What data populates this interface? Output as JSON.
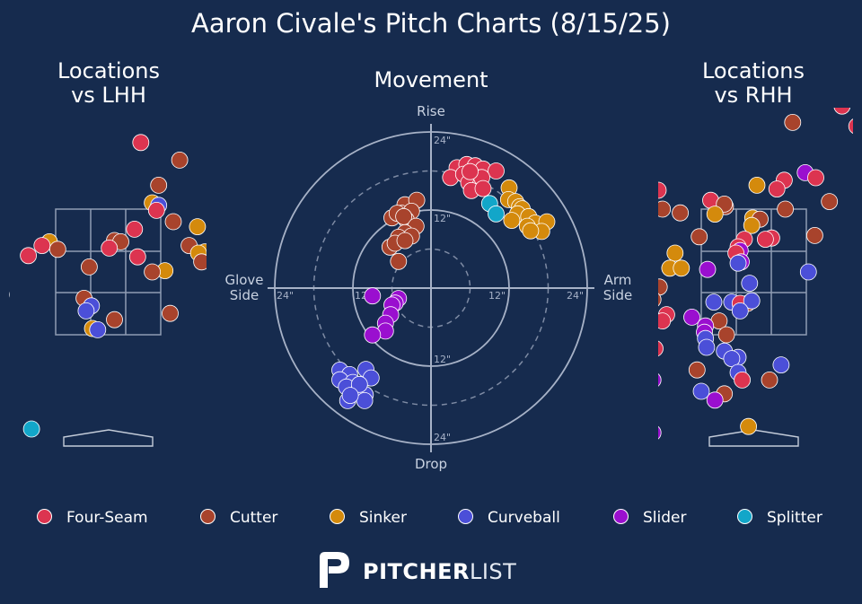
{
  "title": "Aaron Civale's Pitch Charts (8/15/25)",
  "panels": {
    "left_title": "Locations\nvs LHH",
    "center_title": "Movement",
    "right_title": "Locations\nvs RHH"
  },
  "movement_labels": {
    "rise": "Rise",
    "drop": "Drop",
    "glove": "Glove\nSide",
    "arm": "Arm\nSide"
  },
  "ring_labels": [
    "12\"",
    "24\""
  ],
  "pitch_colors": {
    "Four-Seam": "#dc3450",
    "Cutter": "#a8432c",
    "Sinker": "#d48a0c",
    "Curveball": "#4b4fd8",
    "Slider": "#9a0fcf",
    "Splitter": "#12a6c9"
  },
  "legend": [
    {
      "label": "Four-Seam",
      "color": "#dc3450"
    },
    {
      "label": "Cutter",
      "color": "#a8432c"
    },
    {
      "label": "Sinker",
      "color": "#d48a0c"
    },
    {
      "label": "Curveball",
      "color": "#4b4fd8"
    },
    {
      "label": "Slider",
      "color": "#9a0fcf"
    },
    {
      "label": "Splitter",
      "color": "#12a6c9"
    }
  ],
  "logo": {
    "bold": "PITCHER",
    "light": "LIST"
  },
  "chart_data": [
    {
      "type": "scatter",
      "title": "Locations vs LHH",
      "x_unit": "zone widths from plate center (catcher view)",
      "y_unit": "zone heights from zone bottom",
      "xlim": [
        -1.7,
        1.7
      ],
      "ylim": [
        -1.6,
        2.15
      ],
      "points": [
        {
          "p": "Four-Seam",
          "x": 0.31,
          "y": 1.53
        },
        {
          "p": "Cutter",
          "x": 0.68,
          "y": 1.39
        },
        {
          "p": "Splitter",
          "x": 1.43,
          "y": 1.39
        },
        {
          "p": "Cutter",
          "x": 0.48,
          "y": 1.19
        },
        {
          "p": "Sinker",
          "x": 0.42,
          "y": 1.05
        },
        {
          "p": "Curveball",
          "x": 0.48,
          "y": 1.03
        },
        {
          "p": "Four-Seam",
          "x": 0.46,
          "y": 0.99
        },
        {
          "p": "Cutter",
          "x": 0.62,
          "y": 0.9
        },
        {
          "p": "Sinker",
          "x": 0.85,
          "y": 0.86
        },
        {
          "p": "Four-Seam",
          "x": 0.25,
          "y": 0.84
        },
        {
          "p": "Cutter",
          "x": 1.15,
          "y": 0.82
        },
        {
          "p": "Cutter",
          "x": 0.06,
          "y": 0.75
        },
        {
          "p": "Sinker",
          "x": -0.56,
          "y": 0.74
        },
        {
          "p": "Cutter",
          "x": 0.12,
          "y": 0.74
        },
        {
          "p": "Four-Seam",
          "x": -0.63,
          "y": 0.71
        },
        {
          "p": "Cutter",
          "x": -0.48,
          "y": 0.68
        },
        {
          "p": "Four-Seam",
          "x": 0.01,
          "y": 0.69
        },
        {
          "p": "Cutter",
          "x": 0.77,
          "y": 0.71
        },
        {
          "p": "Sinker",
          "x": 0.92,
          "y": 0.66
        },
        {
          "p": "Sinker",
          "x": 0.86,
          "y": 0.65
        },
        {
          "p": "Four-Seam",
          "x": -0.76,
          "y": 0.63
        },
        {
          "p": "Four-Seam",
          "x": 0.28,
          "y": 0.62
        },
        {
          "p": "Cutter",
          "x": 0.89,
          "y": 0.58
        },
        {
          "p": "Cutter",
          "x": -0.18,
          "y": 0.54
        },
        {
          "p": "Sinker",
          "x": 0.54,
          "y": 0.51
        },
        {
          "p": "Cutter",
          "x": 0.42,
          "y": 0.5
        },
        {
          "p": "Sinker",
          "x": -1.02,
          "y": 0.32
        },
        {
          "p": "Cutter",
          "x": -0.23,
          "y": 0.29
        },
        {
          "p": "Curveball",
          "x": -0.16,
          "y": 0.23
        },
        {
          "p": "Curveball",
          "x": -0.21,
          "y": 0.19
        },
        {
          "p": "Cutter",
          "x": 0.59,
          "y": 0.17
        },
        {
          "p": "Cutter",
          "x": 0.06,
          "y": 0.12
        },
        {
          "p": "Sinker",
          "x": -0.15,
          "y": 0.05
        },
        {
          "p": "Curveball",
          "x": -0.1,
          "y": 0.04
        },
        {
          "p": "Curveball",
          "x": -1.31,
          "y": -0.48
        },
        {
          "p": "Splitter",
          "x": -0.73,
          "y": -0.75
        }
      ]
    },
    {
      "type": "scatter",
      "title": "Movement",
      "x_unit": "horizontal break (inches); negative = glove side, positive = arm side",
      "y_unit": "induced vertical break (inches); positive = rise",
      "xlim": [
        -24,
        24
      ],
      "ylim": [
        -24,
        24
      ],
      "rings_in": [
        6,
        12,
        18,
        24
      ],
      "points": [
        {
          "p": "Four-Seam",
          "x": 4.0,
          "y": 18.5
        },
        {
          "p": "Four-Seam",
          "x": 5.5,
          "y": 19.0
        },
        {
          "p": "Four-Seam",
          "x": 6.8,
          "y": 18.8
        },
        {
          "p": "Four-Seam",
          "x": 8.0,
          "y": 18.3
        },
        {
          "p": "Four-Seam",
          "x": 10.0,
          "y": 18.0
        },
        {
          "p": "Four-Seam",
          "x": 3.0,
          "y": 17.0
        },
        {
          "p": "Four-Seam",
          "x": 5.0,
          "y": 17.5
        },
        {
          "p": "Four-Seam",
          "x": 7.0,
          "y": 17.0
        },
        {
          "p": "Four-Seam",
          "x": 5.8,
          "y": 16.2
        },
        {
          "p": "Four-Seam",
          "x": 7.6,
          "y": 15.9
        },
        {
          "p": "Four-Seam",
          "x": 6.2,
          "y": 15.0
        },
        {
          "p": "Four-Seam",
          "x": 7.8,
          "y": 17.0
        },
        {
          "p": "Four-Seam",
          "x": 8.0,
          "y": 15.3
        },
        {
          "p": "Four-Seam",
          "x": 6.0,
          "y": 17.9
        },
        {
          "p": "Sinker",
          "x": 12.0,
          "y": 15.4
        },
        {
          "p": "Sinker",
          "x": 11.9,
          "y": 13.6
        },
        {
          "p": "Sinker",
          "x": 13.0,
          "y": 13.3
        },
        {
          "p": "Sinker",
          "x": 13.6,
          "y": 12.5
        },
        {
          "p": "Sinker",
          "x": 14.0,
          "y": 12.2
        },
        {
          "p": "Sinker",
          "x": 13.3,
          "y": 11.4
        },
        {
          "p": "Sinker",
          "x": 15.0,
          "y": 11.0
        },
        {
          "p": "Sinker",
          "x": 16.0,
          "y": 10.0
        },
        {
          "p": "Sinker",
          "x": 14.8,
          "y": 9.5
        },
        {
          "p": "Sinker",
          "x": 12.4,
          "y": 10.4
        },
        {
          "p": "Sinker",
          "x": 17.8,
          "y": 10.2
        },
        {
          "p": "Sinker",
          "x": 17.0,
          "y": 8.7
        },
        {
          "p": "Sinker",
          "x": 15.3,
          "y": 8.8
        },
        {
          "p": "Splitter",
          "x": 9.0,
          "y": 13.0
        },
        {
          "p": "Splitter",
          "x": 10.0,
          "y": 11.4
        },
        {
          "p": "Cutter",
          "x": -4.0,
          "y": 12.8
        },
        {
          "p": "Cutter",
          "x": -2.2,
          "y": 13.5
        },
        {
          "p": "Cutter",
          "x": -4.5,
          "y": 11.5
        },
        {
          "p": "Cutter",
          "x": -3.0,
          "y": 11.8
        },
        {
          "p": "Cutter",
          "x": -6.0,
          "y": 10.8
        },
        {
          "p": "Cutter",
          "x": -5.2,
          "y": 11.5
        },
        {
          "p": "Cutter",
          "x": -3.8,
          "y": 10.5
        },
        {
          "p": "Cutter",
          "x": -4.2,
          "y": 11.0
        },
        {
          "p": "Cutter",
          "x": -2.3,
          "y": 9.5
        },
        {
          "p": "Cutter",
          "x": -4.0,
          "y": 8.5
        },
        {
          "p": "Cutter",
          "x": -3.0,
          "y": 8.0
        },
        {
          "p": "Cutter",
          "x": -5.0,
          "y": 7.8
        },
        {
          "p": "Cutter",
          "x": -6.3,
          "y": 6.3
        },
        {
          "p": "Cutter",
          "x": -5.5,
          "y": 6.9
        },
        {
          "p": "Cutter",
          "x": -4.0,
          "y": 7.3
        },
        {
          "p": "Cutter",
          "x": -5.0,
          "y": 4.1
        },
        {
          "p": "Slider",
          "x": -9.0,
          "y": -1.2
        },
        {
          "p": "Slider",
          "x": -5.0,
          "y": -1.6
        },
        {
          "p": "Slider",
          "x": -5.5,
          "y": -2.3
        },
        {
          "p": "Slider",
          "x": -6.0,
          "y": -2.6
        },
        {
          "p": "Slider",
          "x": -6.2,
          "y": -4.1
        },
        {
          "p": "Slider",
          "x": -7.0,
          "y": -5.4
        },
        {
          "p": "Slider",
          "x": -7.0,
          "y": -6.6
        },
        {
          "p": "Slider",
          "x": -9.0,
          "y": -7.2
        },
        {
          "p": "Curveball",
          "x": -14.0,
          "y": -12.6
        },
        {
          "p": "Curveball",
          "x": -10.0,
          "y": -12.5
        },
        {
          "p": "Curveball",
          "x": -12.5,
          "y": -13.3
        },
        {
          "p": "Curveball",
          "x": -14.0,
          "y": -14.1
        },
        {
          "p": "Curveball",
          "x": -12.0,
          "y": -14.5
        },
        {
          "p": "Curveball",
          "x": -9.2,
          "y": -13.8
        },
        {
          "p": "Curveball",
          "x": -13.0,
          "y": -15.2
        },
        {
          "p": "Curveball",
          "x": -11.2,
          "y": -15.9
        },
        {
          "p": "Curveball",
          "x": -10.1,
          "y": -16.4
        },
        {
          "p": "Curveball",
          "x": -12.8,
          "y": -17.3
        },
        {
          "p": "Curveball",
          "x": -10.2,
          "y": -17.3
        },
        {
          "p": "Curveball",
          "x": -11.0,
          "y": -14.8
        },
        {
          "p": "Curveball",
          "x": -12.4,
          "y": -16.5
        }
      ]
    },
    {
      "type": "scatter",
      "title": "Locations vs RHH",
      "x_unit": "zone widths from plate center (catcher view)",
      "y_unit": "zone heights from zone bottom",
      "xlim": [
        -1.7,
        1.7
      ],
      "ylim": [
        -1.6,
        2.15
      ],
      "points": [
        {
          "p": "Cutter",
          "x": 0.37,
          "y": 1.69
        },
        {
          "p": "Sinker",
          "x": 0.03,
          "y": 1.19
        },
        {
          "p": "Four-Seam",
          "x": 0.29,
          "y": 1.23
        },
        {
          "p": "Four-Seam",
          "x": 0.22,
          "y": 1.16
        },
        {
          "p": "Four-Seam",
          "x": -0.91,
          "y": 1.15
        },
        {
          "p": "Four-Seam",
          "x": -0.41,
          "y": 1.07
        },
        {
          "p": "Cutter",
          "x": -0.27,
          "y": 1.02
        },
        {
          "p": "Cutter",
          "x": -0.28,
          "y": 1.04
        },
        {
          "p": "Cutter",
          "x": -0.87,
          "y": 1.0
        },
        {
          "p": "Cutter",
          "x": -0.7,
          "y": 0.97
        },
        {
          "p": "Sinker",
          "x": -0.37,
          "y": 0.96
        },
        {
          "p": "Cutter",
          "x": 0.3,
          "y": 1.0
        },
        {
          "p": "Sinker",
          "x": -0.01,
          "y": 0.93
        },
        {
          "p": "Cutter",
          "x": 0.06,
          "y": 0.92
        },
        {
          "p": "Sinker",
          "x": -0.02,
          "y": 0.87
        },
        {
          "p": "Cutter",
          "x": -0.52,
          "y": 0.78
        },
        {
          "p": "Four-Seam",
          "x": -0.09,
          "y": 0.76
        },
        {
          "p": "Four-Seam",
          "x": 0.17,
          "y": 0.77
        },
        {
          "p": "Four-Seam",
          "x": 0.11,
          "y": 0.76
        },
        {
          "p": "Cutter",
          "x": 0.58,
          "y": 0.79
        },
        {
          "p": "Four-Seam",
          "x": -0.15,
          "y": 0.7
        },
        {
          "p": "Slider",
          "x": -0.13,
          "y": 0.67
        },
        {
          "p": "Four-Seam",
          "x": -0.17,
          "y": 0.65
        },
        {
          "p": "Sinker",
          "x": -0.75,
          "y": 0.65
        },
        {
          "p": "Slider",
          "x": -0.12,
          "y": 0.58
        },
        {
          "p": "Curveball",
          "x": -0.15,
          "y": 0.57
        },
        {
          "p": "Sinker",
          "x": -0.8,
          "y": 0.53
        },
        {
          "p": "Sinker",
          "x": -0.69,
          "y": 0.53
        },
        {
          "p": "Slider",
          "x": -0.44,
          "y": 0.52
        },
        {
          "p": "Curveball",
          "x": 0.52,
          "y": 0.5
        },
        {
          "p": "Curveball",
          "x": -0.04,
          "y": 0.41
        },
        {
          "p": "Sinker",
          "x": -0.94,
          "y": 0.38
        },
        {
          "p": "Cutter",
          "x": -0.9,
          "y": 0.38
        },
        {
          "p": "Four-Seam",
          "x": -0.83,
          "y": 0.16
        },
        {
          "p": "Cutter",
          "x": -0.96,
          "y": 0.28
        },
        {
          "p": "Curveball",
          "x": -0.21,
          "y": 0.26
        },
        {
          "p": "Cutter",
          "x": -0.06,
          "y": 0.25
        },
        {
          "p": "Four-Seam",
          "x": -0.13,
          "y": 0.25
        },
        {
          "p": "Curveball",
          "x": -0.02,
          "y": 0.27
        },
        {
          "p": "Curveball",
          "x": -0.38,
          "y": 0.26
        },
        {
          "p": "Curveball",
          "x": -0.13,
          "y": 0.19
        },
        {
          "p": "Four-Seam",
          "x": -0.87,
          "y": 0.11
        },
        {
          "p": "Slider",
          "x": -0.59,
          "y": 0.14
        },
        {
          "p": "Cutter",
          "x": -0.33,
          "y": 0.11
        },
        {
          "p": "Slider",
          "x": -0.46,
          "y": 0.07
        },
        {
          "p": "Slider",
          "x": -0.47,
          "y": 0.02
        },
        {
          "p": "Cutter",
          "x": -0.26,
          "y": 0.0
        },
        {
          "p": "Curveball",
          "x": -0.46,
          "y": -0.03
        },
        {
          "p": "Curveball",
          "x": -0.45,
          "y": -0.1
        },
        {
          "p": "Four-Seam",
          "x": -0.94,
          "y": -0.11
        },
        {
          "p": "Curveball",
          "x": -0.28,
          "y": -0.13
        },
        {
          "p": "Curveball",
          "x": -0.15,
          "y": -0.18
        },
        {
          "p": "Curveball",
          "x": -0.21,
          "y": -0.19
        },
        {
          "p": "Cutter",
          "x": -0.54,
          "y": -0.28
        },
        {
          "p": "Curveball",
          "x": -0.15,
          "y": -0.3
        },
        {
          "p": "Slider",
          "x": -0.96,
          "y": -0.36
        },
        {
          "p": "Curveball",
          "x": -0.5,
          "y": -0.45
        },
        {
          "p": "Cutter",
          "x": -0.28,
          "y": -0.47
        },
        {
          "p": "Slider",
          "x": -0.37,
          "y": -0.52
        },
        {
          "p": "Slider",
          "x": -0.96,
          "y": -0.78
        },
        {
          "p": "Sinker",
          "x": -0.05,
          "y": -0.73
        },
        {
          "p": "Four-Seam",
          "x": -0.11,
          "y": -0.36
        },
        {
          "p": "Cutter",
          "x": 0.15,
          "y": -0.36
        },
        {
          "p": "Curveball",
          "x": 0.26,
          "y": -0.24
        },
        {
          "p": "Slider",
          "x": 0.49,
          "y": 1.29
        },
        {
          "p": "Four-Seam",
          "x": 0.59,
          "y": 1.25
        },
        {
          "p": "Sinker",
          "x": 1.5,
          "y": 1.5
        },
        {
          "p": "Four-Seam",
          "x": 0.98,
          "y": 1.66
        },
        {
          "p": "Four-Seam",
          "x": 0.84,
          "y": 1.82
        },
        {
          "p": "Four-Seam",
          "x": 1.28,
          "y": 1.6
        },
        {
          "p": "Cutter",
          "x": 1.05,
          "y": 1.3
        },
        {
          "p": "Curveball",
          "x": 1.31,
          "y": 1.04
        },
        {
          "p": "Cutter",
          "x": 0.72,
          "y": 1.06
        }
      ]
    }
  ]
}
